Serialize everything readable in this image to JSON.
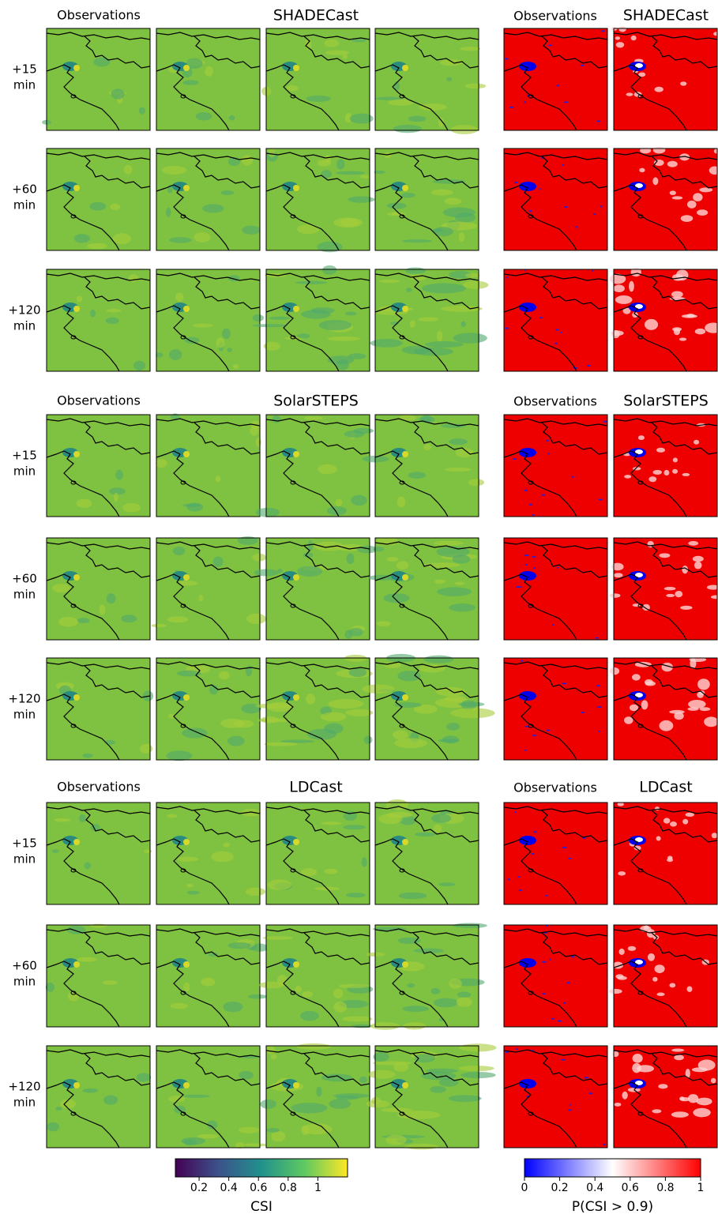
{
  "sections": [
    {
      "observations": "Observations",
      "title": "SHADECast",
      "prob_observations": "Observations",
      "prob_title": "SHADECast",
      "rows": [
        {
          "lead": "+15",
          "unit": "min"
        },
        {
          "lead": "+60",
          "unit": "min"
        },
        {
          "lead": "+120",
          "unit": "min"
        }
      ]
    },
    {
      "observations": "Observations",
      "title": "SolarSTEPS",
      "prob_observations": "Observations",
      "prob_title": "SolarSTEPS",
      "rows": [
        {
          "lead": "+15",
          "unit": "min"
        },
        {
          "lead": "+60",
          "unit": "min"
        },
        {
          "lead": "+120",
          "unit": "min"
        }
      ]
    },
    {
      "observations": "Observations",
      "title": "LDCast",
      "prob_observations": "Observations",
      "prob_title": "LDCast",
      "rows": [
        {
          "lead": "+15",
          "unit": "min"
        },
        {
          "lead": "+60",
          "unit": "min"
        },
        {
          "lead": "+120",
          "unit": "min"
        }
      ]
    }
  ],
  "colorbars": [
    {
      "label": "CSI",
      "lim": [
        0.04,
        1.2
      ],
      "ticks": [
        0.2,
        0.4,
        0.6,
        0.8,
        1
      ],
      "colors": [
        "#440154",
        "#3b528b",
        "#21918c",
        "#5ec962",
        "#fde725"
      ]
    },
    {
      "label": "P(CSI > 0.9)",
      "lim": [
        0,
        1
      ],
      "ticks": [
        0,
        0.2,
        0.4,
        0.6,
        0.8,
        1
      ],
      "colors": [
        "#0000ff",
        "#ffffff",
        "#ff0000"
      ]
    }
  ]
}
